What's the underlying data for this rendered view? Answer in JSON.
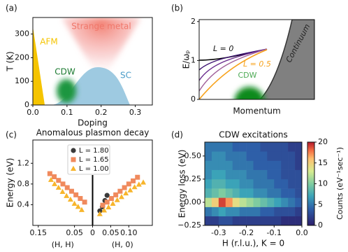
{
  "chart_data": [
    {
      "type": "phase-diagram",
      "panel_label": "(a)",
      "xlabel": "Doping",
      "ylabel": "T (K)",
      "xlim": [
        0,
        0.35
      ],
      "xticks": [
        {
          "value": 0,
          "label": "0.0"
        },
        0.1,
        0.2,
        0.3
      ],
      "ylim": [
        0,
        370
      ],
      "yticks": [
        0,
        100,
        200,
        300
      ],
      "annotations": [
        "Strange metal",
        "AFM",
        "CDW",
        "SC"
      ]
    },
    {
      "type": "dispersion-sketch",
      "panel_label": "(b)",
      "xlabel": "Momentum",
      "ylabel": "E/ωₚ",
      "ylim": [
        0,
        2.05
      ],
      "yticks": [
        0,
        1,
        2
      ],
      "annotations": [
        "L = 0",
        "L = 0.5",
        "CDW",
        "Continuum"
      ]
    },
    {
      "type": "scatter",
      "panel_label": "(c)",
      "title": "Anomalous plasmon decay",
      "ylabel": "Energy (eV)",
      "xlabels": [
        "(H, H)",
        "(H, 0)"
      ],
      "xlim": [
        -0.165,
        0.165
      ],
      "xticks": [
        {
          "value": -0.15,
          "label": "0.15"
        },
        {
          "value": -0.05,
          "label": "0.05"
        },
        0,
        0.05,
        {
          "value": 0.1,
          "label": "0.10"
        }
      ],
      "ylim": [
        0,
        1.65
      ],
      "yticks": [
        0.4,
        0.8,
        1.2
      ],
      "legend": "upper center",
      "series": [
        {
          "name": "L = 1.80",
          "color": "#3a3a3a",
          "marker": "circle",
          "x": [
            0.02,
            0.027,
            0.034,
            0.04
          ],
          "values": [
            0.28,
            0.36,
            0.48,
            0.58
          ]
        },
        {
          "name": "L = 1.65",
          "color": "#f08a5d",
          "marker": "square",
          "x": [
            -0.118,
            -0.106,
            -0.094,
            -0.082,
            -0.07,
            -0.058,
            -0.046,
            -0.034,
            -0.022,
            0.028,
            0.04,
            0.052,
            0.064,
            0.076,
            0.088,
            0.1,
            0.112,
            0.124
          ],
          "values": [
            1.0,
            0.94,
            0.87,
            0.8,
            0.73,
            0.66,
            0.59,
            0.52,
            0.45,
            0.39,
            0.45,
            0.52,
            0.59,
            0.66,
            0.73,
            0.8,
            0.86,
            0.93
          ]
        },
        {
          "name": "L = 1.00",
          "color": "#f7b52c",
          "marker": "triangle",
          "x": [
            -0.115,
            -0.105,
            -0.094,
            -0.083,
            -0.072,
            -0.061,
            -0.05,
            -0.04,
            -0.03,
            0.02,
            0.032,
            0.044,
            0.056,
            0.068,
            0.08,
            0.092,
            0.104,
            0.116,
            0.128,
            0.14
          ],
          "values": [
            0.88,
            0.8,
            0.73,
            0.65,
            0.57,
            0.5,
            0.42,
            0.36,
            0.3,
            0.22,
            0.29,
            0.35,
            0.42,
            0.49,
            0.55,
            0.62,
            0.68,
            0.74,
            0.79,
            0.83
          ]
        }
      ]
    },
    {
      "type": "heatmap",
      "panel_label": "(d)",
      "title": "CDW excitations",
      "xlabel": "H (r.l.u.), K = 0",
      "ylabel": "Energy loss (eV)",
      "colorbar_label": "Counts (eV⁻¹sec⁻¹)",
      "xlim": [
        -0.35,
        0
      ],
      "xticks": [
        -0.3,
        -0.2,
        -0.1,
        {
          "value": 0,
          "label": "0.0"
        }
      ],
      "ylim": [
        -0.25,
        0.65
      ],
      "yticks": [
        {
          "value": -0.25,
          "label": "−0.25"
        },
        {
          "value": 0,
          "label": "0.00"
        },
        {
          "value": 0.25,
          "label": "0.25"
        },
        {
          "value": 0.5,
          "label": "0.50"
        }
      ],
      "clim": [
        0,
        20
      ],
      "cticks": [
        0,
        5,
        10,
        15,
        20
      ],
      "x_bins": [
        -0.35,
        -0.325,
        -0.3,
        -0.275,
        -0.25,
        -0.225,
        -0.2,
        -0.175,
        -0.15,
        -0.125,
        -0.1,
        -0.075,
        -0.05,
        -0.025,
        0
      ],
      "y_bins": [
        -0.25,
        -0.15,
        -0.05,
        0.05,
        0.15,
        0.25,
        0.35,
        0.45,
        0.55,
        0.65
      ],
      "z": [
        [
          2,
          2,
          3,
          3,
          2,
          2,
          2,
          2,
          2,
          2,
          2,
          1,
          1,
          1
        ],
        [
          5,
          6,
          7,
          6,
          6,
          5,
          5,
          5,
          4,
          4,
          3,
          3,
          3,
          2
        ],
        [
          12,
          15,
          19,
          17,
          14,
          12,
          11,
          10,
          9,
          8,
          7,
          6,
          5,
          4
        ],
        [
          8,
          9,
          10,
          9,
          8,
          7,
          7,
          6,
          6,
          5,
          5,
          4,
          4,
          3
        ],
        [
          7,
          8,
          8,
          7,
          7,
          6,
          6,
          5,
          5,
          5,
          4,
          4,
          3,
          3
        ],
        [
          6,
          7,
          7,
          6,
          6,
          6,
          5,
          5,
          5,
          4,
          4,
          3,
          3,
          3
        ],
        [
          6,
          6,
          6,
          6,
          5,
          5,
          5,
          4,
          4,
          4,
          4,
          3,
          3,
          2
        ],
        [
          5,
          6,
          6,
          5,
          5,
          5,
          4,
          4,
          4,
          3,
          3,
          3,
          3,
          2
        ],
        [
          5,
          5,
          5,
          5,
          4,
          4,
          4,
          4,
          3,
          3,
          3,
          3,
          2,
          2
        ]
      ]
    }
  ]
}
